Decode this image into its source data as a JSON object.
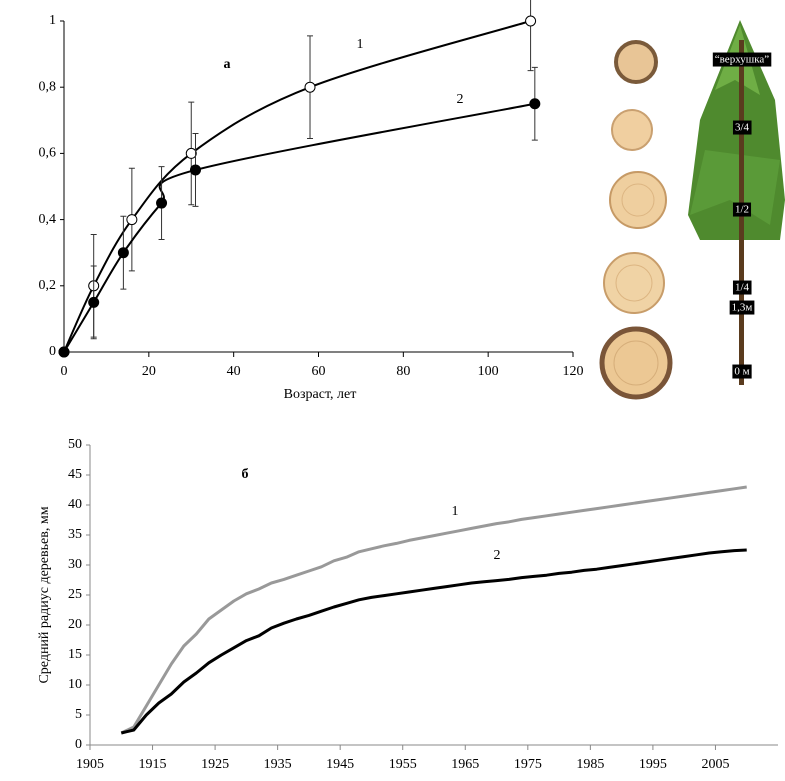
{
  "chart_data": [
    {
      "type": "line",
      "annotation": "а",
      "xlabel": "Возраст, лет",
      "xlim": [
        0,
        120
      ],
      "xticks": [
        0,
        20,
        40,
        60,
        80,
        100,
        120
      ],
      "ylim": [
        0,
        1
      ],
      "yticks": [
        0,
        {
          "value": 0.2,
          "label": "0,2"
        },
        {
          "value": 0.4,
          "label": "0,4"
        },
        {
          "value": 0.6,
          "label": "0,6"
        },
        {
          "value": 0.8,
          "label": "0,8"
        },
        1
      ],
      "grid": false,
      "series": [
        {
          "name": "1",
          "color": "#000000",
          "marker": "open",
          "x": [
            0,
            7,
            16,
            30,
            58,
            110
          ],
          "values": [
            0,
            0.2,
            0.4,
            0.6,
            0.8,
            1.0
          ],
          "errors": [
            null,
            0.155,
            0.155,
            0.155,
            0.155,
            0.15
          ]
        },
        {
          "name": "2",
          "color": "#000000",
          "marker": "filled",
          "x": [
            0,
            7,
            14,
            23,
            31,
            111
          ],
          "values": [
            0,
            0.15,
            0.3,
            0.45,
            0.55,
            0.75
          ],
          "errors": [
            null,
            0.11,
            0.11,
            0.11,
            0.11,
            0.11
          ]
        }
      ]
    },
    {
      "type": "line",
      "annotation": "б",
      "ylabel": "Средний радиус деревьев, мм",
      "xlim": [
        1905,
        2015
      ],
      "xticks": [
        1905,
        1915,
        1925,
        1935,
        1945,
        1955,
        1965,
        1975,
        1985,
        1995,
        2005
      ],
      "ylim": [
        0,
        50
      ],
      "yticks": [
        0,
        5,
        10,
        15,
        20,
        25,
        30,
        35,
        40,
        45,
        50
      ],
      "grid": false,
      "x": [
        1910,
        1912,
        1914,
        1916,
        1918,
        1920,
        1922,
        1924,
        1926,
        1928,
        1930,
        1932,
        1934,
        1936,
        1938,
        1940,
        1942,
        1944,
        1946,
        1948,
        1950,
        1952,
        1954,
        1956,
        1958,
        1960,
        1962,
        1964,
        1966,
        1968,
        1970,
        1972,
        1974,
        1976,
        1978,
        1980,
        1982,
        1984,
        1986,
        1988,
        1990,
        1992,
        1994,
        1996,
        1998,
        2000,
        2002,
        2004,
        2006,
        2008,
        2010
      ],
      "series": [
        {
          "name": "1",
          "color": "#999999",
          "values": [
            2,
            3,
            6.5,
            10,
            13.5,
            16.5,
            18.5,
            21,
            22.5,
            24,
            25.2,
            26,
            27,
            27.6,
            28.3,
            29,
            29.7,
            30.7,
            31.3,
            32.2,
            32.7,
            33.2,
            33.6,
            34.1,
            34.5,
            34.9,
            35.3,
            35.7,
            36.1,
            36.5,
            36.9,
            37.2,
            37.6,
            37.9,
            38.2,
            38.5,
            38.8,
            39.1,
            39.4,
            39.7,
            40,
            40.3,
            40.6,
            40.9,
            41.2,
            41.5,
            41.8,
            42.1,
            42.4,
            42.7,
            43
          ]
        },
        {
          "name": "2",
          "color": "#000000",
          "values": [
            2,
            2.5,
            5,
            7,
            8.5,
            10.5,
            12,
            13.7,
            15,
            16.2,
            17.4,
            18.2,
            19.5,
            20.3,
            21,
            21.6,
            22.3,
            23,
            23.6,
            24.2,
            24.6,
            24.9,
            25.2,
            25.5,
            25.8,
            26.1,
            26.4,
            26.7,
            27,
            27.2,
            27.4,
            27.6,
            27.9,
            28.1,
            28.3,
            28.6,
            28.8,
            29.1,
            29.3,
            29.6,
            29.9,
            30.2,
            30.5,
            30.8,
            31.1,
            31.4,
            31.7,
            32,
            32.2,
            32.4,
            32.5
          ]
        }
      ]
    }
  ],
  "illustration": {
    "labels": [
      "“верхушка”",
      "3/4",
      "1/2",
      "1/4",
      "1,3м",
      "0 м"
    ]
  }
}
